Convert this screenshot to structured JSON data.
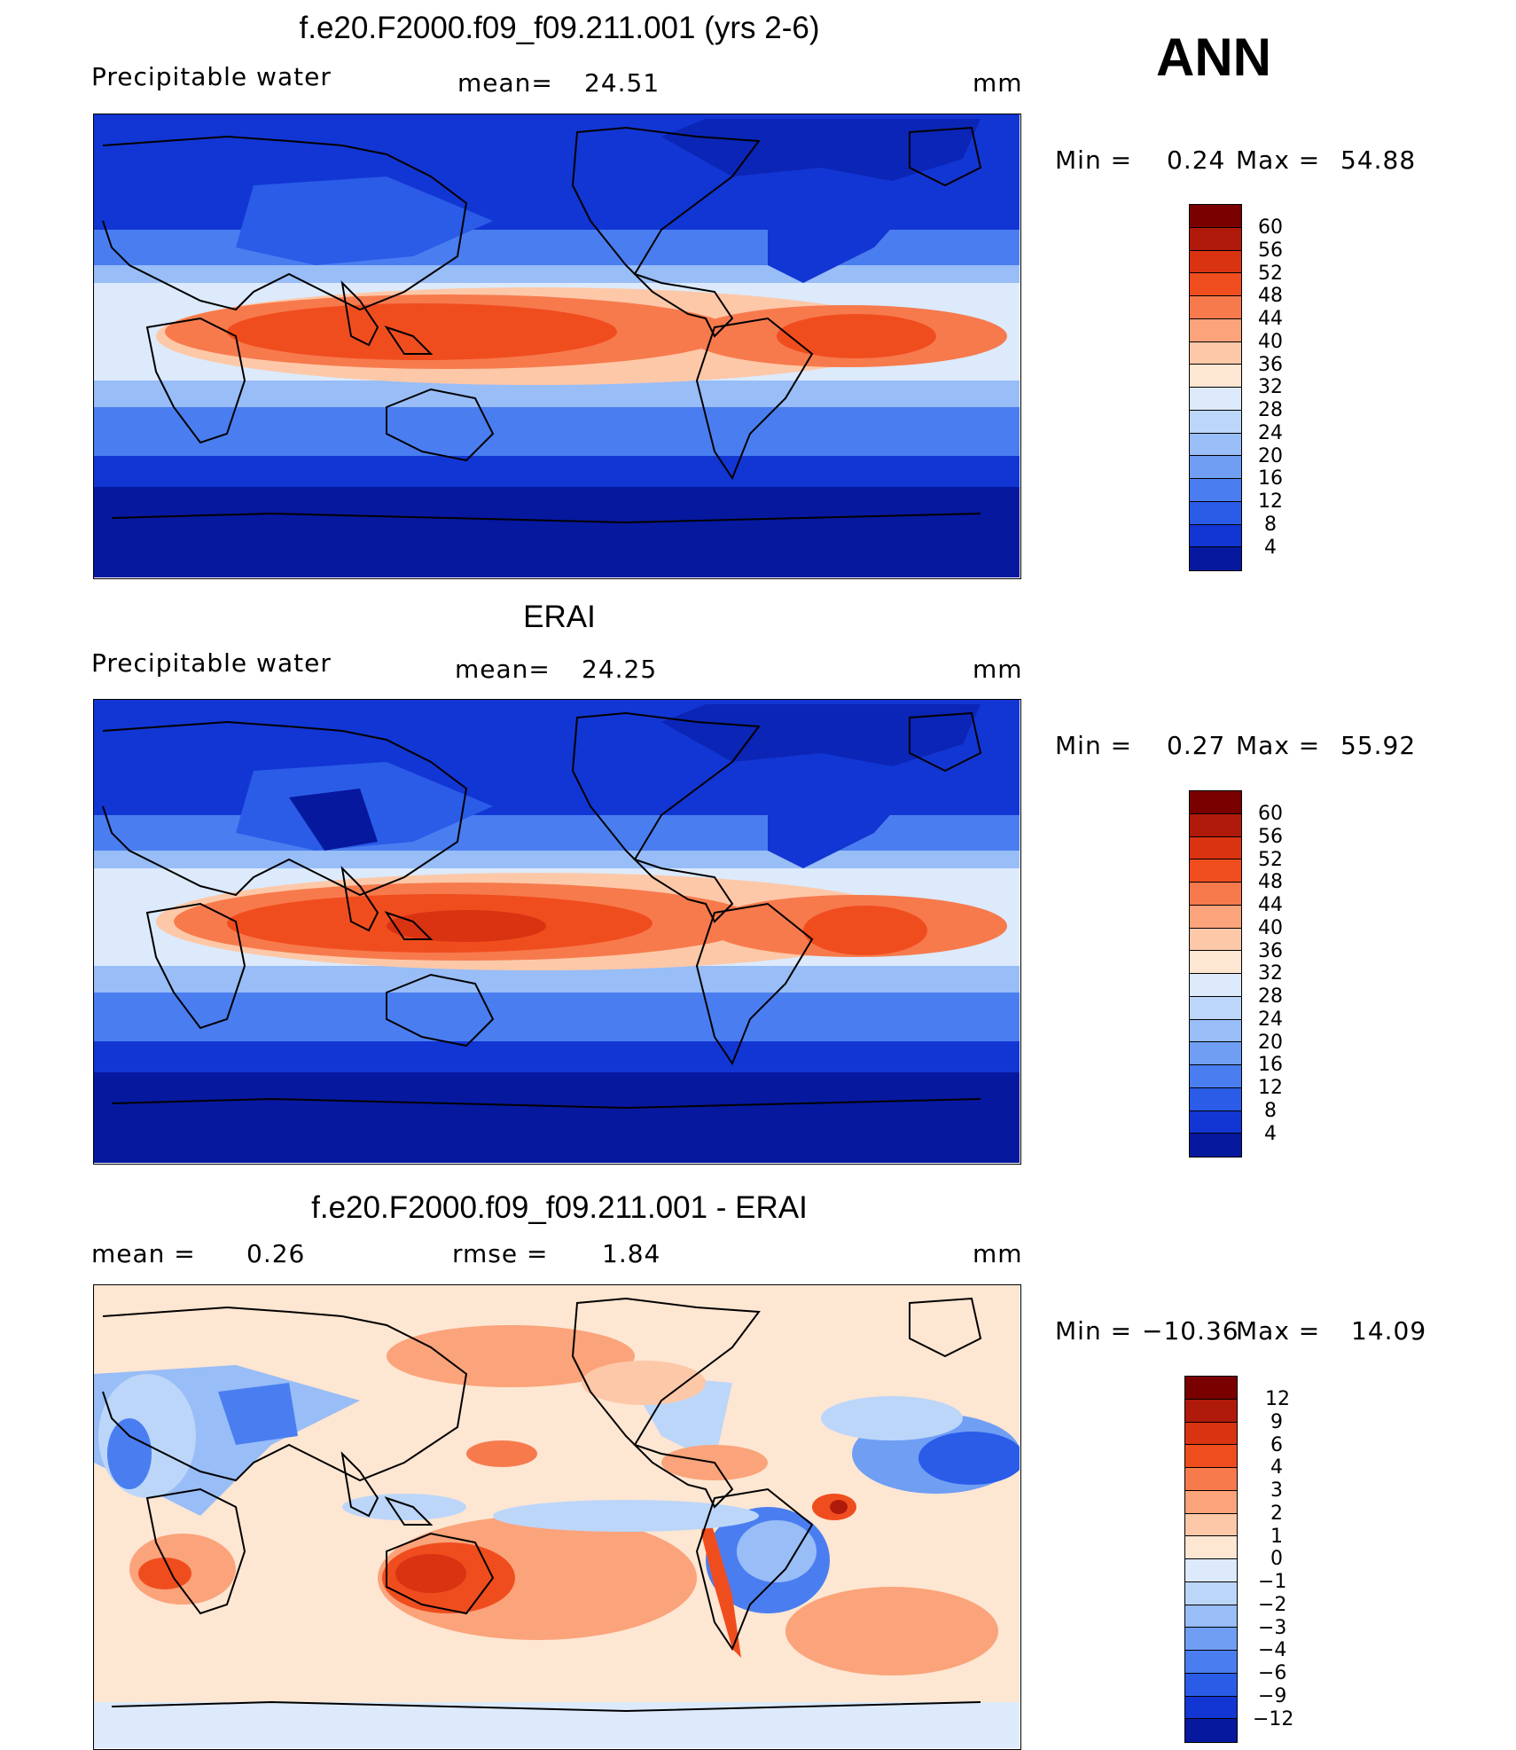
{
  "season": "ANN",
  "panels": [
    {
      "title": "f.e20.F2000.f09_f09.211.001 (yrs 2-6)",
      "left_label": "Precipitable  water",
      "center_label": "mean=",
      "center_value": "24.51",
      "units": "mm",
      "min_label": "Min  =",
      "min_value": "0.24",
      "max_label": "Max  =",
      "max_value": "54.88",
      "colorbar": {
        "ticks": [
          "60",
          "56",
          "52",
          "48",
          "44",
          "40",
          "36",
          "32",
          "28",
          "24",
          "20",
          "16",
          "12",
          "8",
          "4"
        ],
        "colors": [
          "#7a0000",
          "#b01a0a",
          "#d93312",
          "#f04d1f",
          "#f77a4d",
          "#fba37a",
          "#fdc8a8",
          "#fde6d2",
          "#dceafb",
          "#bcd6fa",
          "#98bdf7",
          "#6f9ef3",
          "#4a7ef0",
          "#2a5ce8",
          "#1236d3",
          "#06189e"
        ]
      }
    },
    {
      "title": "ERAI",
      "left_label": "Precipitable  water",
      "center_label": "mean=",
      "center_value": "24.25",
      "units": "mm",
      "min_label": "Min  =",
      "min_value": "0.27",
      "max_label": "Max  =",
      "max_value": "55.92",
      "colorbar": {
        "ticks": [
          "60",
          "56",
          "52",
          "48",
          "44",
          "40",
          "36",
          "32",
          "28",
          "24",
          "20",
          "16",
          "12",
          "8",
          "4"
        ],
        "colors": [
          "#7a0000",
          "#b01a0a",
          "#d93312",
          "#f04d1f",
          "#f77a4d",
          "#fba37a",
          "#fdc8a8",
          "#fde6d2",
          "#dceafb",
          "#bcd6fa",
          "#98bdf7",
          "#6f9ef3",
          "#4a7ef0",
          "#2a5ce8",
          "#1236d3",
          "#06189e"
        ]
      }
    },
    {
      "title": "f.e20.F2000.f09_f09.211.001 - ERAI",
      "left_label": "mean  =",
      "left_value": "0.26",
      "center_label": "rmse  =",
      "center_value": "1.84",
      "units": "mm",
      "min_label": "Min  =",
      "min_value": "−10.36",
      "max_label": "Max  =",
      "max_value": "14.09",
      "colorbar": {
        "ticks": [
          "12",
          "9",
          "6",
          "4",
          "3",
          "2",
          "1",
          "0",
          "−1",
          "−2",
          "−3",
          "−4",
          "−6",
          "−9",
          "−12"
        ],
        "colors": [
          "#7a0000",
          "#b01a0a",
          "#d93312",
          "#f04d1f",
          "#f77a4d",
          "#fba37a",
          "#fdc8a8",
          "#fde6d2",
          "#dceafb",
          "#bcd6fa",
          "#98bdf7",
          "#6f9ef3",
          "#4a7ef0",
          "#2a5ce8",
          "#1236d3",
          "#06189e"
        ]
      }
    }
  ]
}
